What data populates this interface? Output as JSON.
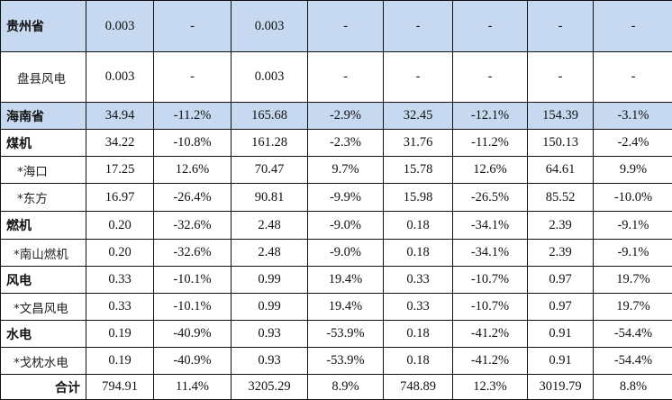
{
  "colors": {
    "highlight": "#c6d9f0",
    "border": "#111111"
  },
  "rows": [
    {
      "label": "贵州省",
      "style": "b",
      "hl": true,
      "cells": [
        "0.003",
        "-",
        "0.003",
        "-",
        "-",
        "-",
        "-",
        "-"
      ]
    },
    {
      "label": "盘县风电",
      "style": "sub2",
      "hl": false,
      "cells": [
        "0.003",
        "-",
        "0.003",
        "-",
        "-",
        "-",
        "-",
        "-"
      ]
    },
    {
      "label": "海南省",
      "style": "b",
      "hl": true,
      "cells": [
        "34.94",
        "-11.2%",
        "165.68",
        "-2.9%",
        "32.45",
        "-12.1%",
        "154.39",
        "-3.1%"
      ]
    },
    {
      "label": "煤机",
      "style": "b",
      "hl": false,
      "cells": [
        "34.22",
        "-10.8%",
        "161.28",
        "-2.3%",
        "31.76",
        "-11.2%",
        "150.13",
        "-2.4%"
      ]
    },
    {
      "label": "*海口",
      "style": "sub2",
      "hl": false,
      "cells": [
        "17.25",
        "12.6%",
        "70.47",
        "9.7%",
        "15.78",
        "12.6%",
        "64.61",
        "9.9%"
      ]
    },
    {
      "label": "*东方",
      "style": "sub2",
      "hl": false,
      "cells": [
        "16.97",
        "-26.4%",
        "90.81",
        "-9.9%",
        "15.98",
        "-26.5%",
        "85.52",
        "-10.0%"
      ]
    },
    {
      "label": "燃机",
      "style": "b",
      "hl": false,
      "cells": [
        "0.20",
        "-32.6%",
        "2.48",
        "-9.0%",
        "0.18",
        "-34.1%",
        "2.39",
        "-9.1%"
      ]
    },
    {
      "label": "*南山燃机",
      "style": "sub",
      "hl": false,
      "cells": [
        "0.20",
        "-32.6%",
        "2.48",
        "-9.0%",
        "0.18",
        "-34.1%",
        "2.39",
        "-9.1%"
      ]
    },
    {
      "label": "风电",
      "style": "b",
      "hl": false,
      "cells": [
        "0.33",
        "-10.1%",
        "0.99",
        "19.4%",
        "0.33",
        "-10.7%",
        "0.97",
        "19.7%"
      ]
    },
    {
      "label": "*文昌风电",
      "style": "sub",
      "hl": false,
      "cells": [
        "0.33",
        "-10.1%",
        "0.99",
        "19.4%",
        "0.33",
        "-10.7%",
        "0.97",
        "19.7%"
      ]
    },
    {
      "label": "水电",
      "style": "b",
      "hl": false,
      "cells": [
        "0.19",
        "-40.9%",
        "0.93",
        "-53.9%",
        "0.18",
        "-41.2%",
        "0.91",
        "-54.4%"
      ]
    },
    {
      "label": "*戈枕水电",
      "style": "sub",
      "hl": false,
      "cells": [
        "0.19",
        "-40.9%",
        "0.93",
        "-53.9%",
        "0.18",
        "-41.2%",
        "0.91",
        "-54.4%"
      ]
    },
    {
      "label": "合计",
      "style": "tot",
      "hl": false,
      "cells": [
        "794.91",
        "11.4%",
        "3205.29",
        "8.9%",
        "748.89",
        "12.3%",
        "3019.79",
        "8.8%"
      ]
    }
  ]
}
